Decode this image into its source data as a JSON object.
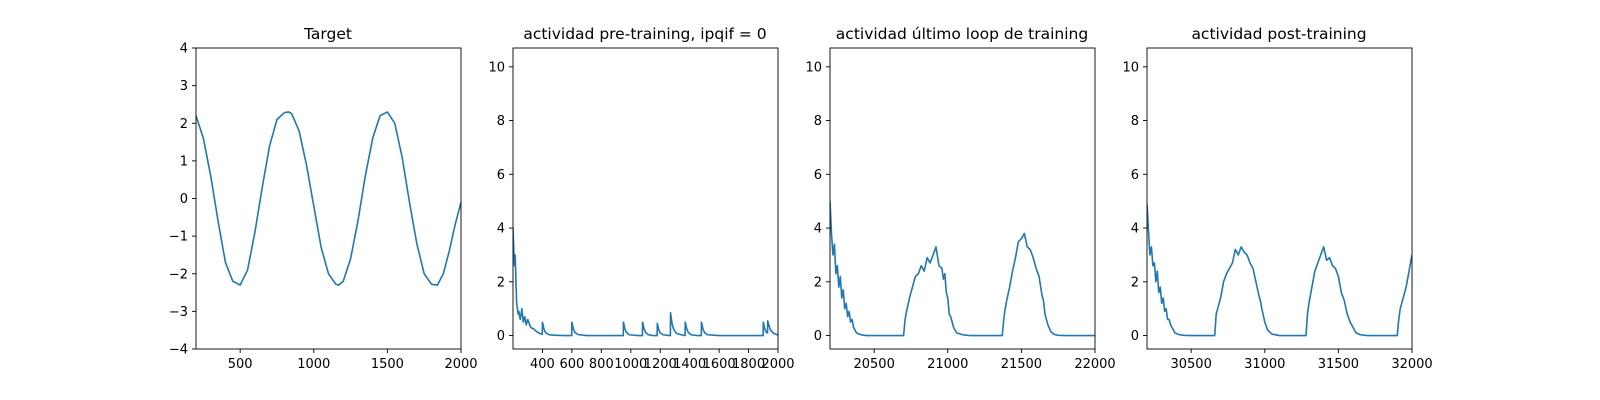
{
  "chart_data": [
    {
      "type": "line",
      "title": "Target",
      "xlabel": "",
      "ylabel": "",
      "xlim": [
        200,
        2000
      ],
      "ylim": [
        -4,
        4
      ],
      "xticks": [
        500,
        1000,
        1500,
        2000
      ],
      "yticks": [
        -4,
        -3,
        -2,
        -1,
        0,
        1,
        2,
        3,
        4
      ],
      "xtick_labels": [
        "500",
        "1000",
        "1500",
        "2000"
      ],
      "ytick_labels": [
        "−4",
        "−3",
        "−2",
        "−1",
        "0",
        "1",
        "2",
        "3",
        "4"
      ],
      "grid": false,
      "color": "#1f77b4",
      "series": [
        {
          "x": [
            200,
            250,
            300,
            350,
            400,
            450,
            500,
            550,
            600,
            650,
            700,
            750,
            800,
            830,
            850,
            900,
            950,
            1000,
            1050,
            1100,
            1150,
            1170,
            1200,
            1250,
            1300,
            1350,
            1400,
            1450,
            1500,
            1550,
            1600,
            1650,
            1700,
            1750,
            1800,
            1840,
            1880,
            1920,
            1960,
            2000
          ],
          "y": [
            2.2,
            1.6,
            0.6,
            -0.6,
            -1.7,
            -2.2,
            -2.3,
            -1.9,
            -0.9,
            0.3,
            1.4,
            2.1,
            2.28,
            2.3,
            2.25,
            1.8,
            0.9,
            -0.2,
            -1.3,
            -2.0,
            -2.28,
            -2.3,
            -2.2,
            -1.6,
            -0.6,
            0.6,
            1.6,
            2.2,
            2.3,
            2.0,
            1.1,
            -0.1,
            -1.2,
            -2.0,
            -2.28,
            -2.3,
            -2.0,
            -1.4,
            -0.7,
            -0.1
          ]
        }
      ]
    },
    {
      "type": "line",
      "title": "actividad pre-training, ipqif = 0",
      "xlabel": "",
      "ylabel": "",
      "xlim": [
        200,
        2000
      ],
      "ylim": [
        -0.5,
        10.7
      ],
      "xticks": [
        400,
        600,
        800,
        1000,
        1200,
        1400,
        1600,
        1800,
        2000
      ],
      "yticks": [
        0,
        2,
        4,
        6,
        8,
        10
      ],
      "xtick_labels": [
        "400",
        "600",
        "800",
        "1000",
        "1200",
        "1400",
        "1600",
        "1800",
        "2000"
      ],
      "ytick_labels": [
        "0",
        "2",
        "4",
        "6",
        "8",
        "10"
      ],
      "grid": false,
      "color": "#1f77b4",
      "series": [
        {
          "x": [
            200,
            205,
            210,
            215,
            220,
            225,
            230,
            235,
            240,
            245,
            250,
            260,
            270,
            280,
            290,
            300,
            320,
            340,
            360,
            380,
            399,
            400,
            410,
            420,
            440,
            460,
            500,
            550,
            599,
            600,
            610,
            620,
            640,
            700,
            800,
            900,
            949,
            950,
            960,
            970,
            990,
            1050,
            1079,
            1080,
            1090,
            1100,
            1120,
            1150,
            1179,
            1180,
            1190,
            1200,
            1220,
            1260,
            1269,
            1270,
            1280,
            1290,
            1310,
            1350,
            1369,
            1370,
            1380,
            1390,
            1410,
            1450,
            1479,
            1480,
            1490,
            1500,
            1520,
            1600,
            1700,
            1800,
            1899,
            1900,
            1910,
            1920,
            1929,
            1930,
            1940,
            1950,
            1970,
            2000
          ],
          "y": [
            4.0,
            3.2,
            2.6,
            3.0,
            2.0,
            1.2,
            1.0,
            0.8,
            0.9,
            0.7,
            0.6,
            1.0,
            0.5,
            0.7,
            0.4,
            0.6,
            0.3,
            0.25,
            0.15,
            0.08,
            0.05,
            0.5,
            0.25,
            0.12,
            0.04,
            0.02,
            0.01,
            0.0,
            0.0,
            0.5,
            0.25,
            0.12,
            0.04,
            0.0,
            0.0,
            0.0,
            0.0,
            0.5,
            0.25,
            0.12,
            0.03,
            0.0,
            0.0,
            0.5,
            0.25,
            0.12,
            0.03,
            0.0,
            0.0,
            0.45,
            0.22,
            0.1,
            0.03,
            0.0,
            0.0,
            0.85,
            0.45,
            0.25,
            0.08,
            0.02,
            0.0,
            0.5,
            0.25,
            0.12,
            0.03,
            0.0,
            0.0,
            0.5,
            0.25,
            0.12,
            0.03,
            0.0,
            0.0,
            0.0,
            0.0,
            0.5,
            0.25,
            0.12,
            0.1,
            0.55,
            0.35,
            0.2,
            0.08,
            0.02
          ]
        }
      ]
    },
    {
      "type": "line",
      "title": "actividad último loop de training",
      "xlabel": "",
      "ylabel": "",
      "xlim": [
        20200,
        22000
      ],
      "ylim": [
        -0.5,
        10.7
      ],
      "xticks": [
        20500,
        21000,
        21500,
        22000
      ],
      "yticks": [
        0,
        2,
        4,
        6,
        8,
        10
      ],
      "xtick_labels": [
        "20500",
        "21000",
        "21500",
        "22000"
      ],
      "ytick_labels": [
        "0",
        "2",
        "4",
        "6",
        "8",
        "10"
      ],
      "grid": false,
      "color": "#1f77b4",
      "series": [
        {
          "x": [
            20200,
            20210,
            20220,
            20230,
            20240,
            20250,
            20260,
            20270,
            20280,
            20290,
            20300,
            20310,
            20320,
            20330,
            20340,
            20350,
            20360,
            20370,
            20380,
            20400,
            20420,
            20450,
            20500,
            20550,
            20600,
            20650,
            20700,
            20710,
            20720,
            20740,
            20760,
            20780,
            20800,
            20820,
            20840,
            20860,
            20880,
            20900,
            20920,
            20940,
            20960,
            20970,
            20980,
            20990,
            21000,
            21010,
            21020,
            21040,
            21060,
            21100,
            21150,
            21200,
            21250,
            21300,
            21370,
            21380,
            21390,
            21400,
            21420,
            21440,
            21460,
            21480,
            21500,
            21520,
            21540,
            21560,
            21580,
            21600,
            21620,
            21640,
            21650,
            21660,
            21670,
            21680,
            21700,
            21720,
            21750,
            21800,
            21900,
            22000
          ],
          "y": [
            5.0,
            3.8,
            3.0,
            3.4,
            2.3,
            2.6,
            1.8,
            2.2,
            1.4,
            1.7,
            1.0,
            1.2,
            0.7,
            0.9,
            0.5,
            0.6,
            0.3,
            0.2,
            0.1,
            0.05,
            0.02,
            0.0,
            0.0,
            0.0,
            0.0,
            0.0,
            0.0,
            0.6,
            0.9,
            1.4,
            1.8,
            2.2,
            2.3,
            2.6,
            2.4,
            2.9,
            2.7,
            3.0,
            3.3,
            2.6,
            2.5,
            2.1,
            2.3,
            1.6,
            1.4,
            0.8,
            0.7,
            0.3,
            0.1,
            0.03,
            0.0,
            0.0,
            0.0,
            0.0,
            0.0,
            0.6,
            1.0,
            1.3,
            1.8,
            2.4,
            2.9,
            3.5,
            3.6,
            3.8,
            3.3,
            3.2,
            2.9,
            2.5,
            2.2,
            1.5,
            1.3,
            0.8,
            0.6,
            0.4,
            0.15,
            0.05,
            0.01,
            0.0,
            0.0,
            0.0
          ]
        }
      ]
    },
    {
      "type": "line",
      "title": "actividad post-training",
      "xlabel": "",
      "ylabel": "",
      "xlim": [
        30200,
        32000
      ],
      "ylim": [
        -0.5,
        10.7
      ],
      "xticks": [
        30500,
        31000,
        31500,
        32000
      ],
      "yticks": [
        0,
        2,
        4,
        6,
        8,
        10
      ],
      "xtick_labels": [
        "30500",
        "31000",
        "31500",
        "32000"
      ],
      "ytick_labels": [
        "0",
        "2",
        "4",
        "6",
        "8",
        "10"
      ],
      "grid": false,
      "color": "#1f77b4",
      "series": [
        {
          "x": [
            30200,
            30210,
            30220,
            30230,
            30240,
            30250,
            30260,
            30270,
            30280,
            30290,
            30300,
            30310,
            30320,
            30330,
            30340,
            30350,
            30360,
            30370,
            30390,
            30420,
            30450,
            30500,
            30550,
            30600,
            30660,
            30670,
            30680,
            30700,
            30720,
            30740,
            30760,
            30780,
            30800,
            30820,
            30840,
            30860,
            30880,
            30900,
            30920,
            30940,
            30960,
            30970,
            30980,
            31000,
            31020,
            31050,
            31100,
            31150,
            31200,
            31280,
            31290,
            31300,
            31320,
            31340,
            31360,
            31380,
            31400,
            31420,
            31440,
            31460,
            31480,
            31500,
            31520,
            31540,
            31560,
            31580,
            31600,
            31620,
            31650,
            31700,
            31750,
            31800,
            31850,
            31900,
            31910,
            31920,
            31940,
            31960,
            31980,
            32000
          ],
          "y": [
            4.9,
            3.9,
            3.0,
            3.3,
            2.6,
            2.7,
            2.0,
            2.4,
            1.6,
            1.8,
            1.2,
            1.4,
            0.9,
            1.0,
            0.6,
            0.6,
            0.4,
            0.3,
            0.1,
            0.03,
            0.01,
            0.0,
            0.0,
            0.0,
            0.0,
            0.8,
            1.0,
            1.4,
            2.0,
            2.3,
            2.5,
            2.7,
            3.2,
            3.0,
            3.3,
            3.1,
            3.0,
            2.7,
            2.5,
            2.0,
            1.5,
            1.3,
            1.0,
            0.5,
            0.2,
            0.05,
            0.0,
            0.0,
            0.0,
            0.0,
            0.8,
            1.2,
            1.8,
            2.4,
            2.7,
            3.0,
            3.3,
            2.8,
            2.9,
            2.6,
            2.5,
            2.2,
            1.6,
            1.3,
            0.8,
            0.5,
            0.3,
            0.1,
            0.03,
            0.0,
            0.0,
            0.0,
            0.0,
            0.0,
            0.6,
            1.0,
            1.4,
            1.8,
            2.4,
            3.0
          ]
        }
      ]
    }
  ]
}
